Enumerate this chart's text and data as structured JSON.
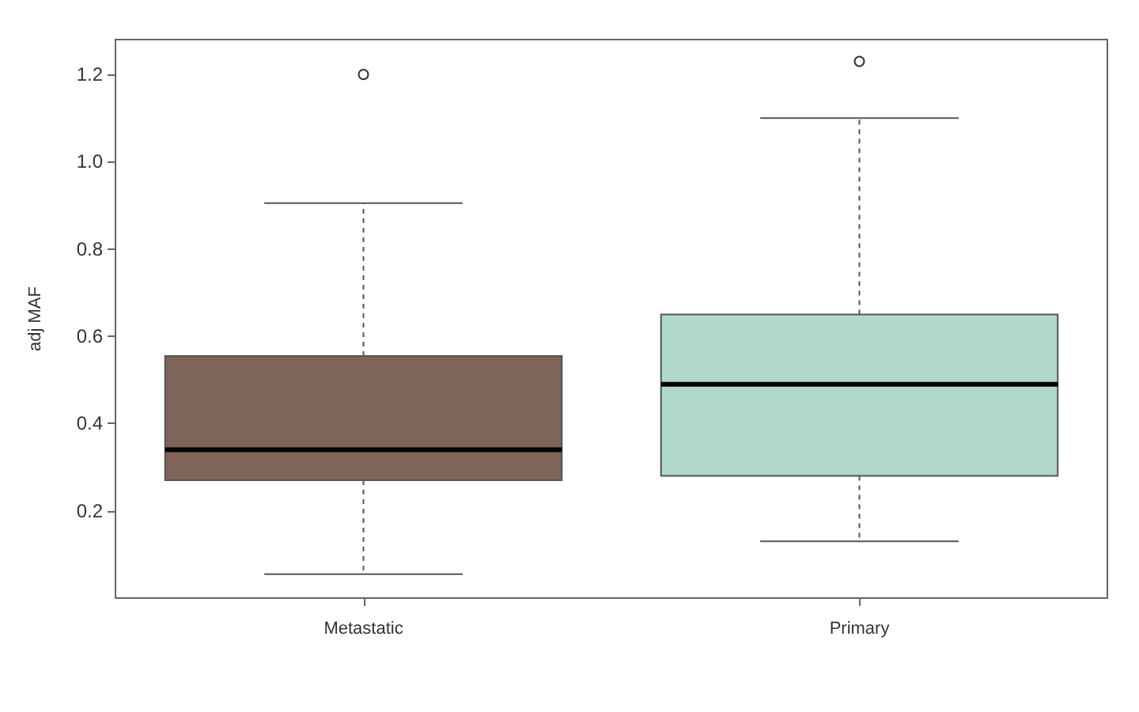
{
  "chart_data": {
    "type": "box",
    "ylabel": "adj MAF",
    "categories": [
      "Metastatic",
      "Primary"
    ],
    "colors": [
      "#7f6459",
      "#b0d8c8"
    ],
    "boxes": [
      {
        "low": 0.055,
        "q1": 0.27,
        "median": 0.34,
        "q3": 0.555,
        "high": 0.905,
        "outliers": [
          1.2
        ]
      },
      {
        "low": 0.13,
        "q1": 0.28,
        "median": 0.49,
        "q3": 0.65,
        "high": 1.1,
        "outliers": [
          1.23
        ]
      }
    ],
    "ylim": [
      0,
      1.28
    ],
    "yticks": [
      0.2,
      0.4,
      0.6,
      0.8,
      {
        "value": 1,
        "label": "1.0"
      },
      1.2
    ],
    "grid": false,
    "legend": false
  }
}
